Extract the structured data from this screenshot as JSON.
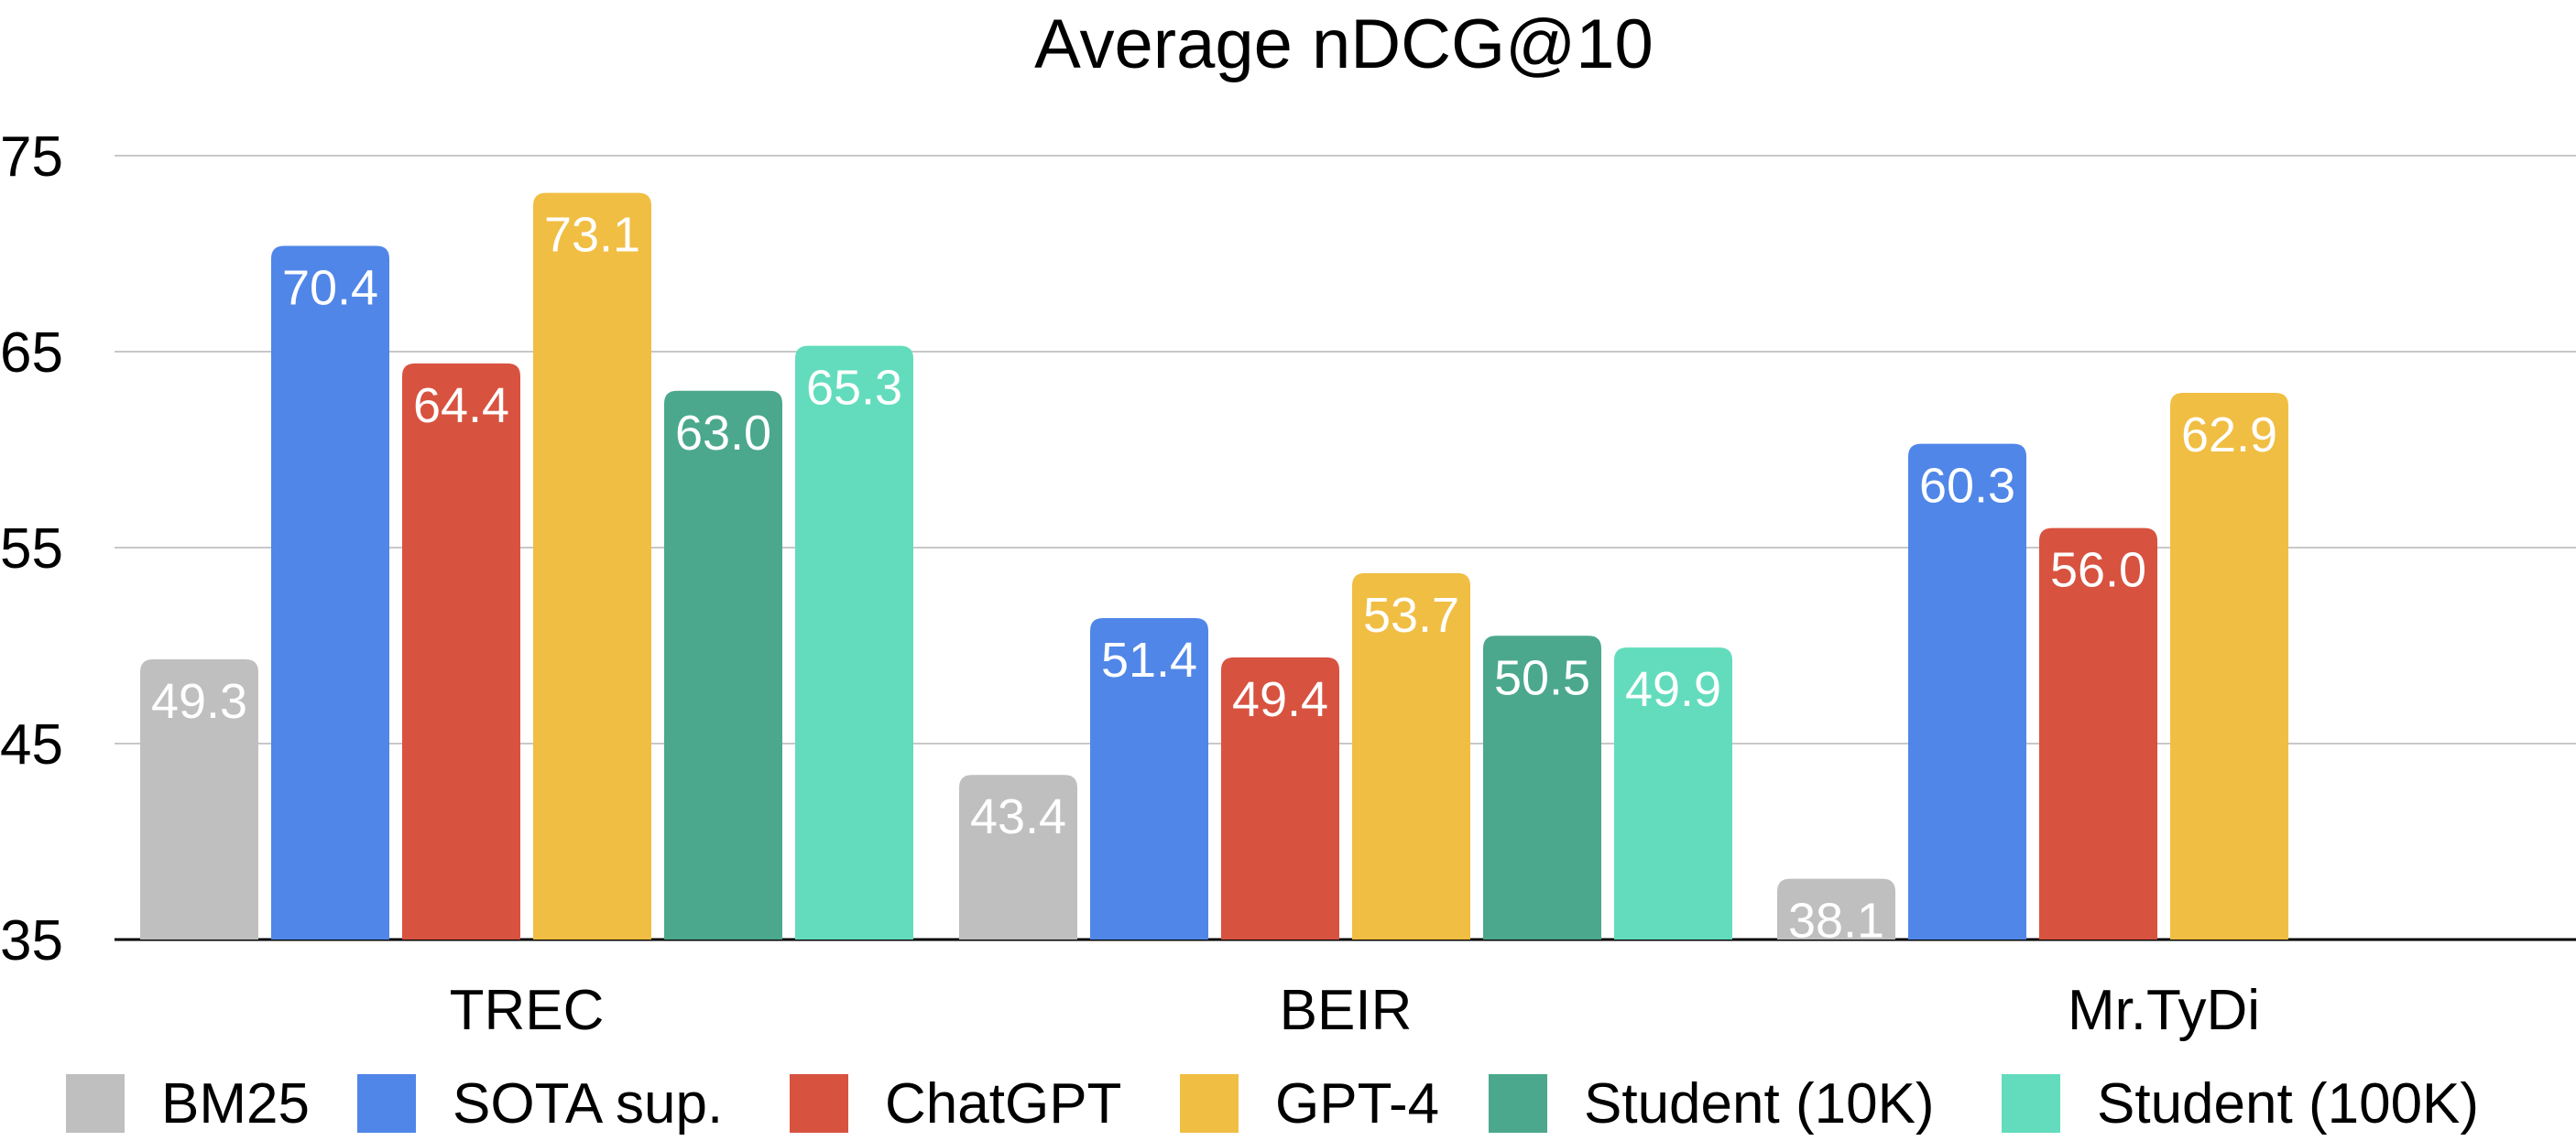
{
  "chart_data": {
    "type": "bar",
    "title": "Average nDCG@10",
    "xlabel": "",
    "ylabel": "",
    "categories": [
      "TREC",
      "BEIR",
      "Mr.TyDi"
    ],
    "series": [
      {
        "name": "BM25",
        "color": "#bfbfbf",
        "values": [
          49.3,
          43.4,
          38.1
        ]
      },
      {
        "name": "SOTA sup.",
        "color": "#5086e8",
        "values": [
          70.4,
          51.4,
          60.3
        ]
      },
      {
        "name": "ChatGPT",
        "color": "#d85240",
        "values": [
          64.4,
          49.4,
          56.0
        ]
      },
      {
        "name": "GPT-4",
        "color": "#f0be43",
        "values": [
          73.1,
          53.7,
          62.9
        ]
      },
      {
        "name": "Student (10K)",
        "color": "#4ba88c",
        "values": [
          63.0,
          50.5,
          null
        ]
      },
      {
        "name": "Student (100K)",
        "color": "#62dcbc",
        "values": [
          65.3,
          49.9,
          null
        ]
      }
    ],
    "y_ticks": [
      35,
      45,
      55,
      65,
      75
    ],
    "ylim": [
      35,
      75
    ],
    "grid": true,
    "legend_position": "bottom",
    "value_labels_inside_bars": true
  }
}
